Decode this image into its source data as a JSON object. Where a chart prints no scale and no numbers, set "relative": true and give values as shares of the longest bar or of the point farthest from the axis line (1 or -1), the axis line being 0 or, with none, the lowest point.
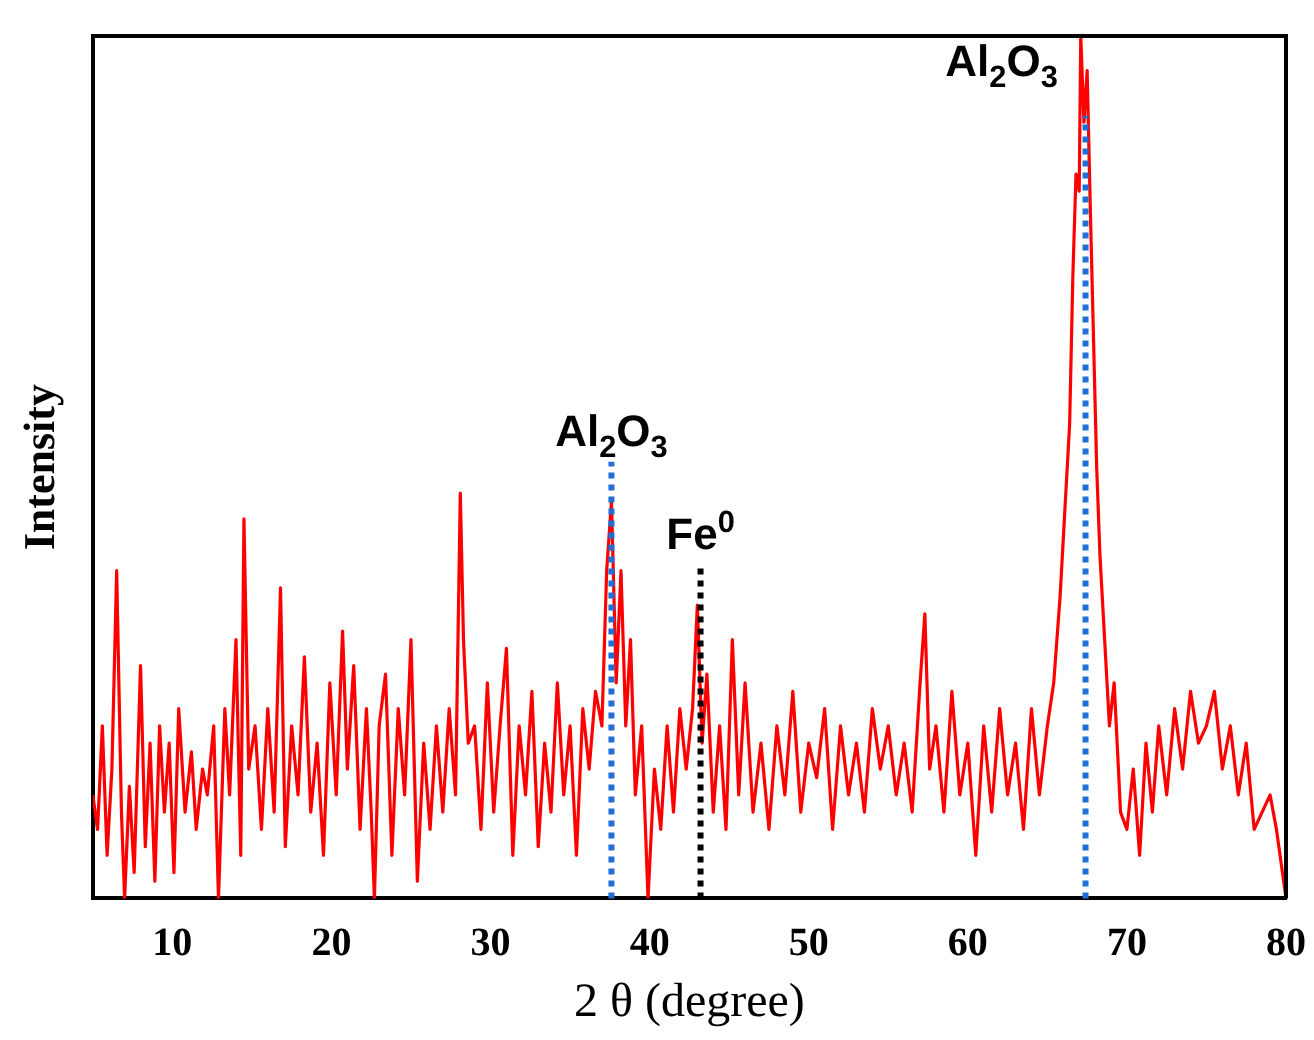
{
  "chart_data": {
    "type": "line",
    "xlabel": "2 θ (degree)",
    "ylabel": "Intensity",
    "relative": true,
    "xlim": [
      5,
      80
    ],
    "xticks": [
      10,
      20,
      30,
      40,
      50,
      60,
      70,
      80
    ],
    "legend": false,
    "grid": false,
    "marker": "none",
    "ref_lines": [
      {
        "axis": "x",
        "value": 37.6,
        "label": "Al$_{2}$O$_{3}$",
        "color": "#1f6fd6",
        "line_style": "dotted"
      },
      {
        "axis": "x",
        "value": 43.2,
        "label": "Fe$^{0}$",
        "color": "#000000",
        "line_style": "dotted"
      },
      {
        "axis": "x",
        "value": 67.4,
        "label": "Al$_{2}$O$_{3}$",
        "color": "#1f6fd6",
        "line_style": "dotted"
      }
    ],
    "series": [
      {
        "color": "#ff0000",
        "x": [
          5.0,
          5.3,
          5.6,
          5.9,
          6.2,
          6.5,
          6.8,
          7.0,
          7.3,
          7.6,
          8.0,
          8.3,
          8.6,
          8.9,
          9.2,
          9.5,
          9.8,
          10.1,
          10.4,
          10.8,
          11.2,
          11.5,
          11.9,
          12.2,
          12.6,
          12.9,
          13.3,
          13.6,
          14.0,
          14.3,
          14.5,
          14.8,
          15.2,
          15.6,
          16.0,
          16.4,
          16.8,
          17.1,
          17.5,
          17.9,
          18.3,
          18.7,
          19.1,
          19.5,
          19.9,
          20.3,
          20.7,
          21.0,
          21.4,
          21.8,
          22.2,
          22.5,
          22.7,
          23.0,
          23.4,
          23.8,
          24.2,
          24.6,
          25.0,
          25.4,
          25.8,
          26.2,
          26.6,
          27.0,
          27.4,
          27.8,
          28.1,
          28.3,
          28.6,
          29.0,
          29.4,
          29.8,
          30.2,
          30.6,
          31.0,
          31.4,
          31.8,
          32.2,
          32.6,
          33.0,
          33.4,
          33.8,
          34.2,
          34.6,
          35.0,
          35.4,
          35.8,
          36.2,
          36.6,
          37.0,
          37.3,
          37.6,
          37.9,
          38.2,
          38.5,
          38.8,
          39.1,
          39.5,
          39.9,
          40.3,
          40.7,
          41.1,
          41.5,
          41.9,
          42.3,
          42.7,
          43.0,
          43.3,
          43.6,
          44.0,
          44.4,
          44.8,
          45.2,
          45.6,
          46.0,
          46.5,
          47.0,
          47.5,
          48.0,
          48.5,
          49.0,
          49.5,
          50.0,
          50.5,
          51.0,
          51.5,
          52.0,
          52.5,
          53.0,
          53.5,
          54.0,
          54.5,
          55.0,
          55.5,
          56.0,
          56.5,
          57.0,
          57.3,
          57.6,
          58.0,
          58.5,
          59.0,
          59.5,
          60.0,
          60.5,
          61.0,
          61.5,
          62.0,
          62.5,
          63.0,
          63.5,
          64.0,
          64.5,
          65.0,
          65.4,
          65.8,
          66.1,
          66.4,
          66.6,
          66.8,
          67.0,
          67.1,
          67.3,
          67.5,
          67.7,
          67.9,
          68.1,
          68.3,
          68.6,
          68.9,
          69.2,
          69.6,
          70.0,
          70.4,
          70.8,
          71.2,
          71.6,
          72.0,
          72.5,
          73.0,
          73.5,
          74.0,
          74.5,
          75.0,
          75.5,
          76.0,
          76.5,
          77.0,
          77.5,
          78.0,
          78.5,
          79.0,
          79.4,
          79.7,
          80.0
        ],
        "values": [
          0.12,
          0.08,
          0.2,
          0.05,
          0.15,
          0.38,
          0.1,
          0.0,
          0.13,
          0.03,
          0.27,
          0.06,
          0.18,
          0.02,
          0.2,
          0.1,
          0.18,
          0.03,
          0.22,
          0.1,
          0.17,
          0.08,
          0.15,
          0.12,
          0.2,
          0.0,
          0.22,
          0.12,
          0.3,
          0.05,
          0.44,
          0.15,
          0.2,
          0.08,
          0.22,
          0.1,
          0.36,
          0.06,
          0.2,
          0.12,
          0.28,
          0.1,
          0.18,
          0.05,
          0.25,
          0.12,
          0.31,
          0.15,
          0.27,
          0.08,
          0.22,
          0.1,
          0.0,
          0.2,
          0.26,
          0.05,
          0.22,
          0.12,
          0.3,
          0.02,
          0.18,
          0.08,
          0.2,
          0.1,
          0.22,
          0.12,
          0.47,
          0.3,
          0.18,
          0.2,
          0.08,
          0.25,
          0.1,
          0.2,
          0.29,
          0.05,
          0.2,
          0.12,
          0.24,
          0.06,
          0.18,
          0.1,
          0.25,
          0.12,
          0.2,
          0.05,
          0.22,
          0.15,
          0.24,
          0.2,
          0.38,
          0.46,
          0.25,
          0.38,
          0.2,
          0.3,
          0.12,
          0.2,
          0.0,
          0.15,
          0.08,
          0.2,
          0.1,
          0.22,
          0.15,
          0.22,
          0.34,
          0.18,
          0.26,
          0.1,
          0.2,
          0.08,
          0.3,
          0.12,
          0.25,
          0.1,
          0.18,
          0.08,
          0.2,
          0.12,
          0.24,
          0.1,
          0.18,
          0.14,
          0.22,
          0.08,
          0.2,
          0.12,
          0.18,
          0.1,
          0.22,
          0.15,
          0.2,
          0.12,
          0.18,
          0.1,
          0.25,
          0.33,
          0.15,
          0.2,
          0.1,
          0.24,
          0.12,
          0.18,
          0.05,
          0.2,
          0.1,
          0.22,
          0.12,
          0.18,
          0.08,
          0.22,
          0.12,
          0.2,
          0.25,
          0.35,
          0.45,
          0.55,
          0.72,
          0.84,
          0.82,
          1.0,
          0.9,
          0.96,
          0.8,
          0.65,
          0.5,
          0.4,
          0.3,
          0.2,
          0.25,
          0.1,
          0.08,
          0.15,
          0.05,
          0.18,
          0.1,
          0.2,
          0.12,
          0.22,
          0.15,
          0.24,
          0.18,
          0.2,
          0.24,
          0.15,
          0.2,
          0.12,
          0.18,
          0.08,
          0.1,
          0.12,
          0.08,
          0.04,
          0.0
        ]
      }
    ]
  }
}
